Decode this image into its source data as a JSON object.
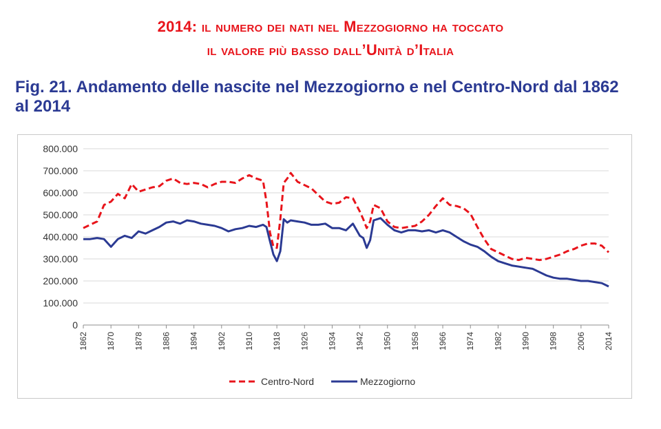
{
  "headline": {
    "line1_year": "2014",
    "line1_rest": ": il numero dei nati nel Mezzogiorno ha toccato",
    "line2": "il valore più basso dall’Unità d’Italia"
  },
  "figure_title": "Fig. 21. Andamento delle nascite nel Mezzogiorno e nel Centro-Nord dal 1862 al 2014",
  "colors": {
    "centro_nord": "#e8141b",
    "mezzogiorno": "#2b3a93",
    "headline": "#e8141b",
    "title": "#2b3a93"
  },
  "chart_data": {
    "type": "line",
    "x": [
      1862,
      1864,
      1866,
      1868,
      1870,
      1872,
      1874,
      1876,
      1878,
      1880,
      1882,
      1884,
      1886,
      1888,
      1890,
      1892,
      1894,
      1896,
      1898,
      1900,
      1902,
      1904,
      1906,
      1908,
      1910,
      1912,
      1914,
      1915,
      1916,
      1917,
      1918,
      1919,
      1920,
      1921,
      1922,
      1924,
      1926,
      1928,
      1930,
      1932,
      1934,
      1936,
      1938,
      1940,
      1942,
      1943,
      1944,
      1945,
      1946,
      1948,
      1950,
      1952,
      1954,
      1956,
      1958,
      1960,
      1962,
      1964,
      1966,
      1968,
      1970,
      1972,
      1974,
      1976,
      1978,
      1980,
      1982,
      1984,
      1986,
      1988,
      1990,
      1992,
      1994,
      1996,
      1998,
      2000,
      2002,
      2004,
      2006,
      2008,
      2010,
      2012,
      2014
    ],
    "series": [
      {
        "name": "Centro-Nord",
        "style": "dashed",
        "values": [
          440000,
          455000,
          470000,
          545000,
          560000,
          595000,
          575000,
          640000,
          605000,
          615000,
          625000,
          630000,
          655000,
          665000,
          645000,
          640000,
          645000,
          640000,
          625000,
          640000,
          650000,
          650000,
          645000,
          665000,
          680000,
          665000,
          655000,
          560000,
          420000,
          355000,
          350000,
          480000,
          645000,
          665000,
          690000,
          650000,
          635000,
          620000,
          590000,
          560000,
          550000,
          555000,
          580000,
          575000,
          515000,
          480000,
          440000,
          470000,
          545000,
          530000,
          470000,
          445000,
          440000,
          445000,
          450000,
          470000,
          500000,
          540000,
          575000,
          545000,
          540000,
          530000,
          505000,
          445000,
          390000,
          345000,
          330000,
          315000,
          300000,
          295000,
          305000,
          300000,
          295000,
          300000,
          310000,
          320000,
          335000,
          345000,
          360000,
          370000,
          370000,
          360000,
          330000
        ]
      },
      {
        "name": "Mezzogiorno",
        "style": "solid",
        "values": [
          390000,
          390000,
          395000,
          390000,
          355000,
          390000,
          405000,
          395000,
          425000,
          415000,
          430000,
          445000,
          465000,
          470000,
          460000,
          475000,
          470000,
          460000,
          455000,
          450000,
          440000,
          425000,
          435000,
          440000,
          450000,
          445000,
          455000,
          445000,
          380000,
          320000,
          290000,
          335000,
          480000,
          465000,
          475000,
          470000,
          465000,
          455000,
          455000,
          460000,
          440000,
          440000,
          430000,
          460000,
          405000,
          395000,
          350000,
          385000,
          475000,
          485000,
          455000,
          430000,
          420000,
          430000,
          430000,
          425000,
          430000,
          420000,
          430000,
          420000,
          400000,
          380000,
          365000,
          355000,
          335000,
          310000,
          290000,
          280000,
          270000,
          265000,
          260000,
          255000,
          240000,
          225000,
          215000,
          210000,
          210000,
          205000,
          200000,
          200000,
          195000,
          190000,
          175000
        ]
      }
    ],
    "ylim": [
      0,
      800000
    ],
    "yticks": [
      0,
      100000,
      200000,
      300000,
      400000,
      500000,
      600000,
      700000,
      800000
    ],
    "ytick_labels": [
      "0",
      "100.000",
      "200.000",
      "300.000",
      "400.000",
      "500.000",
      "600.000",
      "700.000",
      "800.000"
    ],
    "xlim": [
      1862,
      2014
    ],
    "xticks": [
      1862,
      1870,
      1878,
      1886,
      1894,
      1902,
      1910,
      1918,
      1926,
      1934,
      1942,
      1950,
      1958,
      1966,
      1974,
      1982,
      1990,
      1998,
      2006,
      2014
    ],
    "xtick_labels": [
      "1862",
      "1870",
      "1878",
      "1886",
      "1894",
      "1902",
      "1910",
      "1918",
      "1926",
      "1934",
      "1942",
      "1950",
      "1958",
      "1966",
      "1974",
      "1982",
      "1990",
      "1998",
      "2006",
      "2014"
    ],
    "grid": "horizontal",
    "legend_position": "bottom"
  }
}
